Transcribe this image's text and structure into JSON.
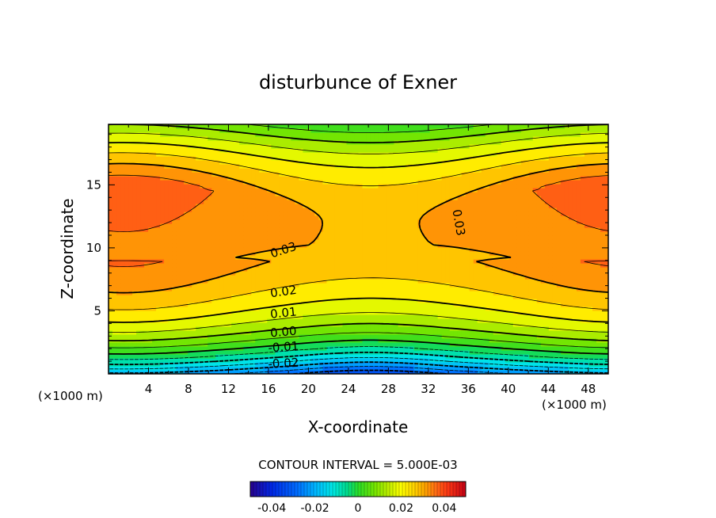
{
  "chart_data": {
    "type": "heatmap",
    "title": "disturbunce of Exner",
    "xlabel": "X-coordinate",
    "ylabel": "Z-coordinate",
    "x_unit": "(×1000 m)",
    "y_unit": "(×1000 m)",
    "xlim": [
      0,
      50
    ],
    "ylim": [
      0,
      19.8
    ],
    "x_ticks": [
      "4",
      "8",
      "12",
      "16",
      "20",
      "24",
      "28",
      "32",
      "36",
      "40",
      "44",
      "48"
    ],
    "x_tick_values": [
      4,
      8,
      12,
      16,
      20,
      24,
      28,
      32,
      36,
      40,
      44,
      48
    ],
    "y_ticks": [
      "5",
      "10",
      "15"
    ],
    "y_tick_values": [
      5,
      10,
      15
    ],
    "contour_interval_text": "CONTOUR INTERVAL = 5.000E-03",
    "contour_interval": 0.005,
    "contour_labels": [
      {
        "text": "0.03",
        "x": 17.5,
        "z": 9.8,
        "rotate": -18
      },
      {
        "text": "0.03",
        "x": 35.0,
        "z": 12.0,
        "rotate": 80
      },
      {
        "text": "0.02",
        "x": 17.5,
        "z": 6.5,
        "rotate": -8
      },
      {
        "text": "0.01",
        "x": 17.5,
        "z": 4.8,
        "rotate": -6
      },
      {
        "text": "0.00",
        "x": 17.5,
        "z": 3.3,
        "rotate": -5
      },
      {
        "text": "-0.01",
        "x": 17.5,
        "z": 2.1,
        "rotate": -4
      },
      {
        "text": "-0.02",
        "x": 17.5,
        "z": 0.8,
        "rotate": -3
      }
    ],
    "colorbar": {
      "min": -0.05,
      "max": 0.05,
      "tick_labels": [
        "-0.04",
        "-0.02",
        "0",
        "0.02",
        "0.04"
      ],
      "tick_values": [
        -0.04,
        -0.02,
        0,
        0.02,
        0.04
      ]
    },
    "field_description": {
      "max_value": 0.042,
      "max_locations": [
        {
          "x": 4,
          "z": 12
        },
        {
          "x": 48,
          "z": 12
        }
      ],
      "min_value": -0.028,
      "min_location": {
        "x": 26,
        "z": 0
      },
      "saddle_value": 0.028,
      "saddle_location": {
        "x": 26,
        "z": 13
      }
    }
  }
}
